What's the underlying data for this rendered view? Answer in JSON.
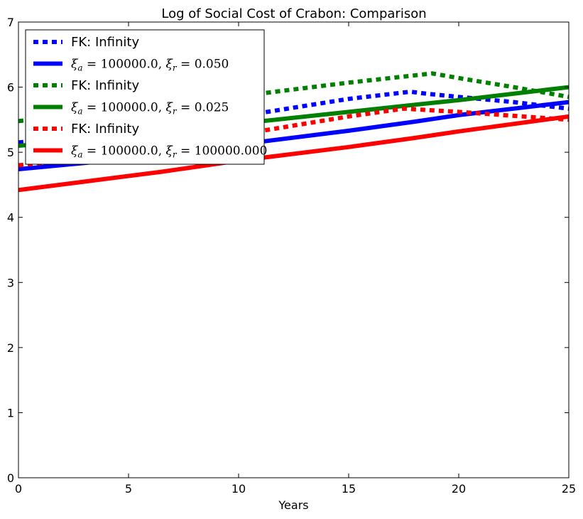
{
  "chart_data": {
    "type": "line",
    "title": "Log of Social Cost of Crabon: Comparison",
    "xlabel": "Years",
    "ylabel": "",
    "xlim": [
      0,
      25
    ],
    "ylim": [
      0,
      7
    ],
    "xticks": [
      "0",
      "5",
      "10",
      "15",
      "20",
      "25"
    ],
    "yticks": [
      "0",
      "1",
      "2",
      "3",
      "4",
      "5",
      "6",
      "7"
    ],
    "grid": false,
    "legend_position": "top-left",
    "series": [
      {
        "name": "FK: Infinity",
        "color": "#0000ff",
        "style": "dotted",
        "x": [
          0,
          5,
          10,
          15,
          17.8,
          18.5,
          20,
          22.5,
          25
        ],
        "y": [
          5.15,
          5.3,
          5.55,
          5.82,
          5.93,
          5.9,
          5.85,
          5.77,
          5.67
        ]
      },
      {
        "name": "ξa = 100000.0, ξr = 0.050",
        "color": "#0000ff",
        "style": "solid",
        "x": [
          0,
          5,
          10,
          15,
          18,
          20,
          25
        ],
        "y": [
          4.74,
          4.9,
          5.12,
          5.33,
          5.47,
          5.57,
          5.77
        ]
      },
      {
        "name": "FK: Infinity",
        "color": "#008000",
        "style": "dotted",
        "x": [
          0,
          5,
          10,
          15,
          18.8,
          20,
          22.5,
          25
        ],
        "y": [
          5.48,
          5.63,
          5.86,
          6.07,
          6.21,
          6.14,
          6.0,
          5.85
        ]
      },
      {
        "name": "ξa = 100000.0, ξr = 0.025",
        "color": "#008000",
        "style": "solid",
        "x": [
          0,
          5,
          10,
          15,
          18,
          20,
          25
        ],
        "y": [
          5.1,
          5.24,
          5.44,
          5.62,
          5.73,
          5.8,
          6.0
        ]
      },
      {
        "name": "FK: Infinity",
        "color": "#ff0000",
        "style": "dotted",
        "x": [
          0,
          5,
          10,
          15,
          17.5,
          20,
          22.5,
          25
        ],
        "y": [
          4.8,
          4.97,
          5.27,
          5.55,
          5.67,
          5.62,
          5.56,
          5.5
        ]
      },
      {
        "name": "ξa = 100000.0, ξr = 100000.000",
        "color": "#ff0000",
        "style": "solid",
        "x": [
          0,
          6.5,
          10,
          15,
          18,
          20,
          25
        ],
        "y": [
          4.42,
          4.7,
          4.87,
          5.08,
          5.22,
          5.32,
          5.55
        ]
      }
    ],
    "legend": [
      {
        "label": "FK: Infinity",
        "math": false
      },
      {
        "label": "ξa = 100000.0, ξr = 0.050",
        "math": true,
        "a": "100000.0",
        "r": "0.050"
      },
      {
        "label": "FK: Infinity",
        "math": false
      },
      {
        "label": "ξa = 100000.0, ξr = 0.025",
        "math": true,
        "a": "100000.0",
        "r": "0.025"
      },
      {
        "label": "FK: Infinity",
        "math": false
      },
      {
        "label": "ξa = 100000.0, ξr = 100000.000",
        "math": true,
        "a": "100000.0",
        "r": "100000.000"
      }
    ]
  }
}
